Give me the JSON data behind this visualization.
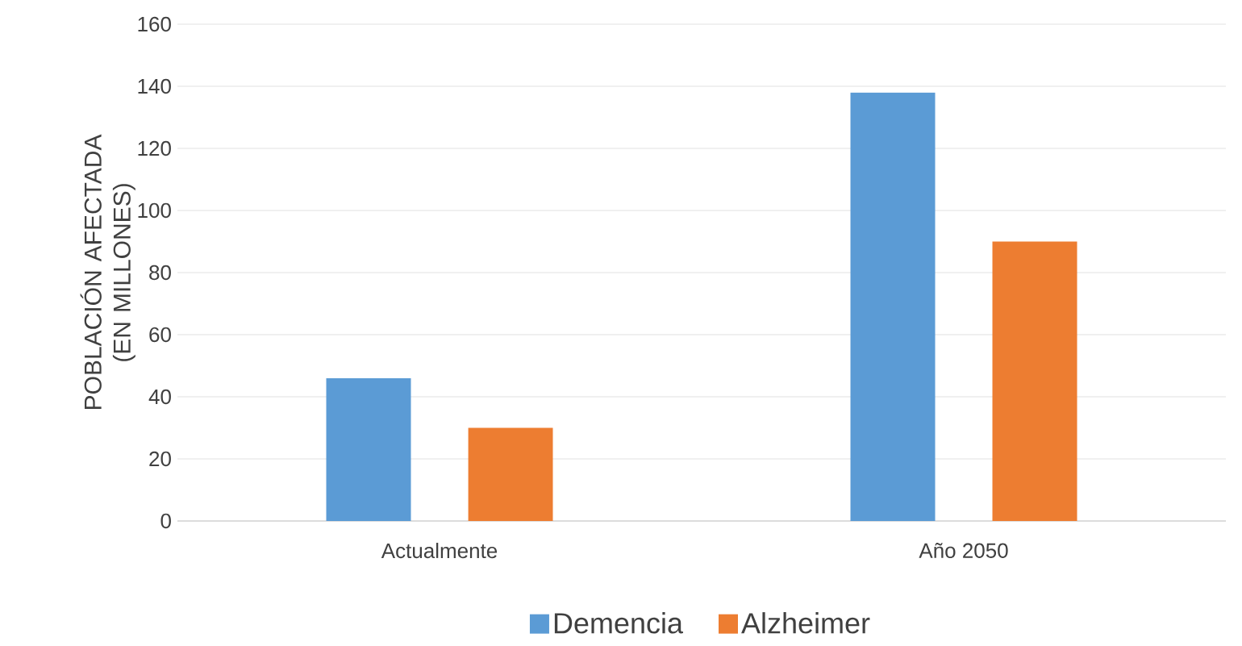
{
  "chart_data": {
    "type": "bar",
    "ylabel": "POBLACIÓN AFECTADA (EN MILLONES)",
    "categories": [
      "Actualmente",
      "Año 2050"
    ],
    "series": [
      {
        "name": "Demencia",
        "color": "#5b9bd5",
        "values": [
          46,
          138
        ]
      },
      {
        "name": "Alzheimer",
        "color": "#ed7d31",
        "values": [
          30,
          90
        ]
      }
    ],
    "ylim": [
      0,
      160
    ],
    "yticks": [
      0,
      20,
      40,
      60,
      80,
      100,
      120,
      140,
      160
    ],
    "grid": "y",
    "legend": "bottom"
  }
}
